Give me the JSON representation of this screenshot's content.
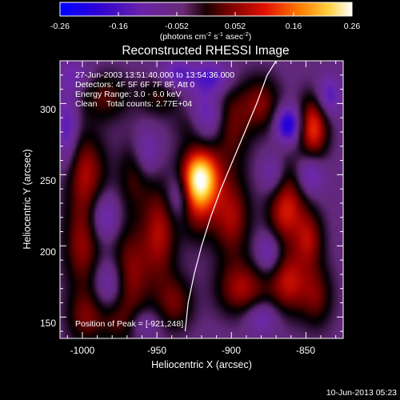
{
  "colorbar": {
    "ticks": [
      "-0.26",
      "-0.16",
      "-0.052",
      "0.052",
      "0.16",
      "0.26"
    ],
    "units_main": "(photons cm",
    "units_sup1": "-2",
    "units_mid1": " s",
    "units_sup2": "-1",
    "units_mid2": " asec",
    "units_sup3": "-2",
    "units_end": ")"
  },
  "image": {
    "title": "Reconstructed RHESSI Image",
    "info_lines": [
      "27-Jun-2003 13:51:40.000 to 13:54:36.000",
      "Detectors: 4F 5F 6F 7F 8F, Att 0",
      "Energy Range: 3.0 - 6.0 keV",
      "Clean    Total counts: 2.77E+04"
    ],
    "peak_label": "Position of Peak = [-921,248]",
    "footer_timestamp": "10-Jun-2013 05:23"
  },
  "chart_data": {
    "type": "heatmap",
    "title": "Reconstructed RHESSI Image",
    "xlabel": "Heliocentric X (arcsec)",
    "ylabel": "Heliocentric Y (arcsec)",
    "xlim": [
      -1015,
      -825
    ],
    "ylim": [
      135,
      330
    ],
    "xticks": [
      -1000,
      -950,
      -900,
      -850
    ],
    "yticks": [
      150,
      200,
      250,
      300
    ],
    "value_range": [
      -0.26,
      0.26
    ],
    "units": "photons cm^-2 s^-1 asec^-2",
    "colormap": "IDL color table 3 (black-red-yellow-white) with blue-violet negatives",
    "peak_position": [
      -921,
      248
    ],
    "limb_curve": [
      [
        -931,
        140
      ],
      [
        -929,
        160
      ],
      [
        -925,
        180
      ],
      [
        -920,
        200
      ],
      [
        -914,
        220
      ],
      [
        -907,
        240
      ],
      [
        -899,
        260
      ],
      [
        -891,
        280
      ],
      [
        -883,
        300
      ],
      [
        -876,
        320
      ],
      [
        -870,
        330
      ]
    ],
    "blobs": [
      {
        "x": -921,
        "y": 249,
        "amp": 0.26,
        "sx": 9,
        "sy": 14
      },
      {
        "x": -923,
        "y": 230,
        "amp": 0.12,
        "sx": 9,
        "sy": 18
      },
      {
        "x": -925,
        "y": 285,
        "amp": 0.07,
        "sx": 9,
        "sy": 10
      },
      {
        "x": -998,
        "y": 252,
        "amp": 0.13,
        "sx": 10,
        "sy": 20
      },
      {
        "x": -1000,
        "y": 200,
        "amp": 0.12,
        "sx": 9,
        "sy": 22
      },
      {
        "x": -998,
        "y": 150,
        "amp": 0.1,
        "sx": 9,
        "sy": 14
      },
      {
        "x": -985,
        "y": 305,
        "amp": 0.09,
        "sx": 12,
        "sy": 12
      },
      {
        "x": -968,
        "y": 180,
        "amp": 0.12,
        "sx": 10,
        "sy": 26
      },
      {
        "x": -965,
        "y": 250,
        "amp": 0.08,
        "sx": 8,
        "sy": 18
      },
      {
        "x": -948,
        "y": 210,
        "amp": 0.13,
        "sx": 8,
        "sy": 24
      },
      {
        "x": -948,
        "y": 305,
        "amp": 0.08,
        "sx": 10,
        "sy": 10
      },
      {
        "x": -938,
        "y": 160,
        "amp": 0.1,
        "sx": 9,
        "sy": 14
      },
      {
        "x": -900,
        "y": 220,
        "amp": 0.13,
        "sx": 9,
        "sy": 20
      },
      {
        "x": -893,
        "y": 170,
        "amp": 0.13,
        "sx": 12,
        "sy": 14
      },
      {
        "x": -900,
        "y": 285,
        "amp": 0.1,
        "sx": 9,
        "sy": 22
      },
      {
        "x": -880,
        "y": 300,
        "amp": 0.11,
        "sx": 9,
        "sy": 14
      },
      {
        "x": -862,
        "y": 175,
        "amp": 0.14,
        "sx": 9,
        "sy": 16
      },
      {
        "x": -865,
        "y": 220,
        "amp": 0.1,
        "sx": 8,
        "sy": 14
      },
      {
        "x": -860,
        "y": 240,
        "amp": 0.1,
        "sx": 10,
        "sy": 18
      },
      {
        "x": -845,
        "y": 283,
        "amp": 0.18,
        "sx": 7,
        "sy": 16
      },
      {
        "x": -848,
        "y": 205,
        "amp": 0.12,
        "sx": 7,
        "sy": 14
      },
      {
        "x": -843,
        "y": 165,
        "amp": 0.1,
        "sx": 8,
        "sy": 16
      },
      {
        "x": -975,
        "y": 145,
        "amp": 0.06,
        "sx": 10,
        "sy": 10
      },
      {
        "x": -862,
        "y": 285,
        "amp": -0.17,
        "sx": 6,
        "sy": 9
      },
      {
        "x": -848,
        "y": 250,
        "amp": -0.12,
        "sx": 7,
        "sy": 11
      },
      {
        "x": -835,
        "y": 305,
        "amp": -0.1,
        "sx": 6,
        "sy": 10
      },
      {
        "x": -917,
        "y": 290,
        "amp": -0.12,
        "sx": 8,
        "sy": 12
      },
      {
        "x": -913,
        "y": 318,
        "amp": -0.1,
        "sx": 10,
        "sy": 8
      },
      {
        "x": -937,
        "y": 320,
        "amp": -0.09,
        "sx": 8,
        "sy": 8
      },
      {
        "x": -935,
        "y": 235,
        "amp": -0.1,
        "sx": 6,
        "sy": 12
      },
      {
        "x": -957,
        "y": 265,
        "amp": -0.08,
        "sx": 6,
        "sy": 12
      },
      {
        "x": -985,
        "y": 220,
        "amp": -0.1,
        "sx": 7,
        "sy": 12
      },
      {
        "x": -982,
        "y": 175,
        "amp": -0.09,
        "sx": 7,
        "sy": 12
      },
      {
        "x": -1010,
        "y": 280,
        "amp": -0.1,
        "sx": 5,
        "sy": 20
      },
      {
        "x": -960,
        "y": 145,
        "amp": -0.07,
        "sx": 8,
        "sy": 8
      },
      {
        "x": -875,
        "y": 195,
        "amp": -0.09,
        "sx": 6,
        "sy": 10
      },
      {
        "x": -880,
        "y": 150,
        "amp": -0.08,
        "sx": 8,
        "sy": 8
      },
      {
        "x": -872,
        "y": 250,
        "amp": -0.08,
        "sx": 6,
        "sy": 10
      },
      {
        "x": -1005,
        "y": 320,
        "amp": -0.06,
        "sx": 8,
        "sy": 8
      }
    ]
  }
}
